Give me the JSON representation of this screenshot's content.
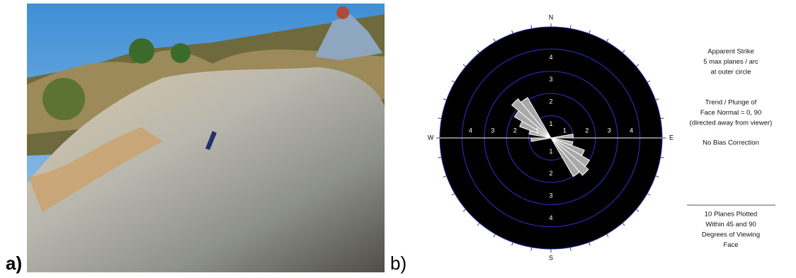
{
  "figure": {
    "panel_a": {
      "label": "a)"
    },
    "panel_b": {
      "label": "b)",
      "rose": {
        "directions": [
          "N",
          "E",
          "S",
          "W"
        ],
        "rings": [
          1,
          2,
          3,
          4
        ],
        "rlim": [
          0,
          5
        ],
        "petals": [
          {
            "azimuth": [
              260,
              270
            ],
            "count": 0.9
          },
          {
            "azimuth": [
              280,
              290
            ],
            "count": 1.0
          },
          {
            "azimuth": [
              290,
              300
            ],
            "count": 1.5
          },
          {
            "azimuth": [
              300,
              310
            ],
            "count": 1.9
          },
          {
            "azimuth": [
              310,
              320
            ],
            "count": 2.3
          },
          {
            "azimuth": [
              320,
              330
            ],
            "count": 2.1
          },
          {
            "azimuth": [
              80,
              90
            ],
            "count": 1.0
          },
          {
            "azimuth": [
              100,
              110
            ],
            "count": 1.0
          },
          {
            "azimuth": [
              110,
              120
            ],
            "count": 1.6
          },
          {
            "azimuth": [
              120,
              130
            ],
            "count": 2.0
          },
          {
            "azimuth": [
              130,
              140
            ],
            "count": 2.2
          },
          {
            "azimuth": [
              140,
              150
            ],
            "count": 2.0
          }
        ]
      },
      "legend": {
        "header": [
          "Apparent Strike",
          "5 max planes / arc",
          "at outer circle"
        ],
        "trend": [
          "Trend / Plunge of",
          "Face Normal =  0, 90",
          "(directed away from viewer)"
        ],
        "bias": "No Bias Correction",
        "footer": [
          "10 Planes Plotted",
          "Within 45 and 90",
          "Degrees of Viewing",
          "Face"
        ]
      }
    }
  }
}
